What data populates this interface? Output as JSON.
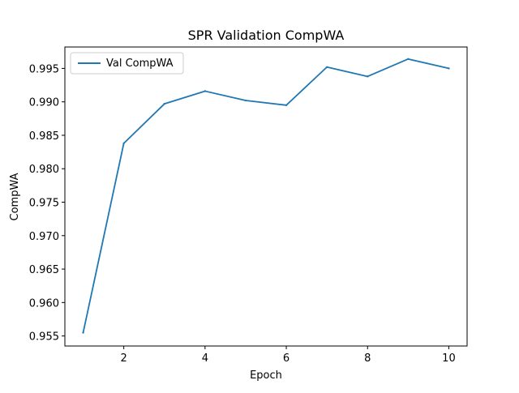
{
  "chart_data": {
    "type": "line",
    "title": "SPR Validation CompWA",
    "xlabel": "Epoch",
    "ylabel": "CompWA",
    "xlim": [
      0.55,
      10.45
    ],
    "ylim": [
      0.9535,
      0.9982
    ],
    "xticks": [
      2,
      4,
      6,
      8,
      10
    ],
    "yticks": [
      0.955,
      0.96,
      0.965,
      0.97,
      0.975,
      0.98,
      0.985,
      0.99,
      0.995
    ],
    "ytick_labels": [
      "0.955",
      "0.960",
      "0.965",
      "0.970",
      "0.975",
      "0.980",
      "0.985",
      "0.990",
      "0.995"
    ],
    "grid": false,
    "legend_position": "top-left",
    "series": [
      {
        "name": "Val CompWA",
        "color": "#1f77b4",
        "x": [
          1,
          2,
          3,
          4,
          5,
          6,
          7,
          8,
          9,
          10
        ],
        "y": [
          0.9555,
          0.9838,
          0.9897,
          0.9916,
          0.9902,
          0.9895,
          0.9952,
          0.9938,
          0.9964,
          0.995
        ]
      }
    ]
  }
}
